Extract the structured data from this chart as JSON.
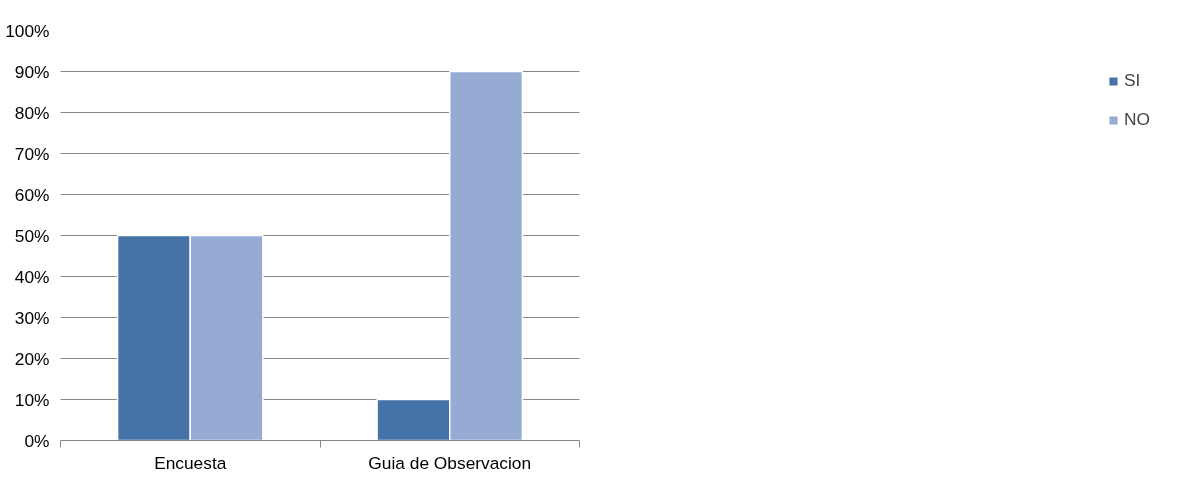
{
  "chart_data": {
    "type": "bar",
    "categories": [
      "Encuesta",
      "Guia de Observacion"
    ],
    "series": [
      {
        "name": "SI",
        "color": "#4572a7",
        "values": [
          50,
          10
        ]
      },
      {
        "name": "NO",
        "color": "#95abd3",
        "values": [
          50,
          90
        ]
      }
    ],
    "ylim": [
      0,
      100
    ],
    "yticks": [
      {
        "value": 0,
        "label": "0%"
      },
      {
        "value": 10,
        "label": "10%"
      },
      {
        "value": 20,
        "label": "20%"
      },
      {
        "value": 30,
        "label": "30%"
      },
      {
        "value": 40,
        "label": "40%"
      },
      {
        "value": 50,
        "label": "50%"
      },
      {
        "value": 60,
        "label": "60%"
      },
      {
        "value": 70,
        "label": "70%"
      },
      {
        "value": 80,
        "label": "80%"
      },
      {
        "value": 90,
        "label": "90%"
      },
      {
        "value": 100,
        "label": "100%"
      }
    ],
    "grid": "y",
    "legend": "right"
  }
}
